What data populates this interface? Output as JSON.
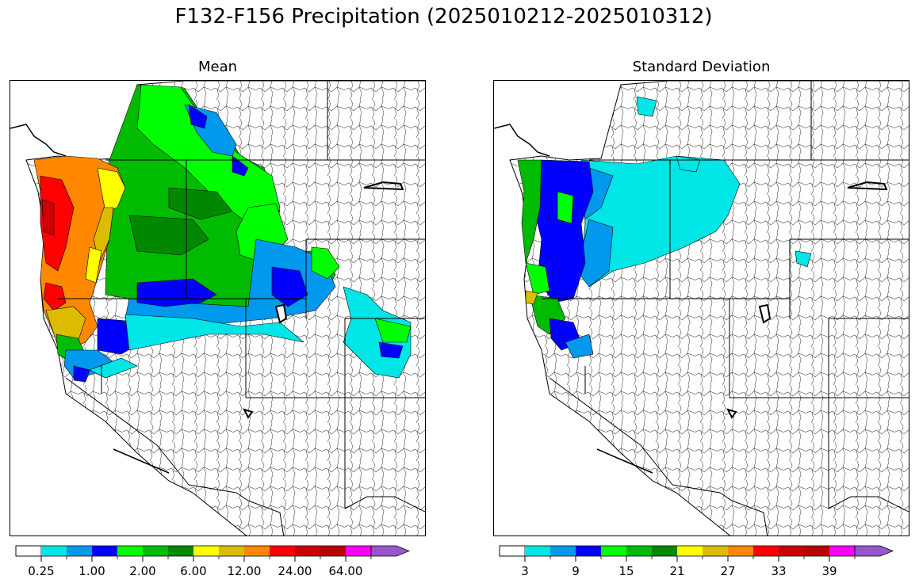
{
  "figure": {
    "title": "F132-F156 Precipitation (2025010212-2025010312)"
  },
  "panels": [
    {
      "id": "mean",
      "title": "Mean",
      "colorbar": {
        "colors": [
          "#ffffff",
          "#00e5e5",
          "#0099ee",
          "#0000ff",
          "#00ff00",
          "#00bb00",
          "#008800",
          "#ffff00",
          "#ddbb00",
          "#ff8800",
          "#ff0000",
          "#cc0000",
          "#bb0000",
          "#ff00ff",
          "#9955cc"
        ],
        "tick_labels": [
          "0.25",
          "1.00",
          "2.00",
          "6.00",
          "12.00",
          "24.00",
          "64.00"
        ],
        "extend": "max"
      }
    },
    {
      "id": "stddev",
      "title": "Standard Deviation",
      "colorbar": {
        "colors": [
          "#ffffff",
          "#00e5e5",
          "#0099ee",
          "#0000ff",
          "#00ff00",
          "#00bb00",
          "#008800",
          "#ffff00",
          "#ddbb00",
          "#ff8800",
          "#ff0000",
          "#cc0000",
          "#bb0000",
          "#ff00ff",
          "#9955cc"
        ],
        "tick_labels": [
          "3",
          "9",
          "15",
          "21",
          "27",
          "33",
          "39"
        ],
        "extend": "max"
      }
    }
  ]
}
